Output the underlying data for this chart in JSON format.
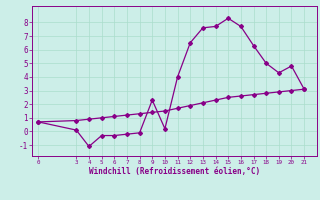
{
  "xlabel": "Windchill (Refroidissement éolien,°C)",
  "bg_color": "#cceee8",
  "grid_color": "#aaddcc",
  "line_color": "#880088",
  "x_ticks": [
    0,
    3,
    4,
    5,
    6,
    7,
    8,
    9,
    10,
    11,
    12,
    13,
    14,
    15,
    16,
    17,
    18,
    19,
    20,
    21
  ],
  "ylim": [
    -1.8,
    9.2
  ],
  "xlim": [
    -0.5,
    22
  ],
  "series1_x": [
    0,
    3,
    4,
    5,
    6,
    7,
    8,
    9,
    10,
    11,
    12,
    13,
    14,
    15,
    16,
    17,
    18,
    19,
    20,
    21
  ],
  "series1_y": [
    0.7,
    0.1,
    -1.1,
    -0.3,
    -0.3,
    -0.2,
    -0.1,
    2.3,
    0.2,
    4.0,
    6.5,
    7.6,
    7.7,
    8.3,
    7.7,
    6.3,
    5.0,
    4.3,
    4.8,
    3.1
  ],
  "series2_x": [
    0,
    3,
    4,
    5,
    6,
    7,
    8,
    9,
    10,
    11,
    12,
    13,
    14,
    15,
    16,
    17,
    18,
    19,
    20,
    21
  ],
  "series2_y": [
    0.7,
    0.8,
    0.9,
    1.0,
    1.1,
    1.2,
    1.3,
    1.4,
    1.5,
    1.7,
    1.9,
    2.1,
    2.3,
    2.5,
    2.6,
    2.7,
    2.8,
    2.9,
    3.0,
    3.1
  ],
  "yticks": [
    -1,
    0,
    1,
    2,
    3,
    4,
    5,
    6,
    7,
    8
  ],
  "xtick_fontsize": 4.2,
  "ytick_fontsize": 5.5,
  "xlabel_fontsize": 5.5
}
